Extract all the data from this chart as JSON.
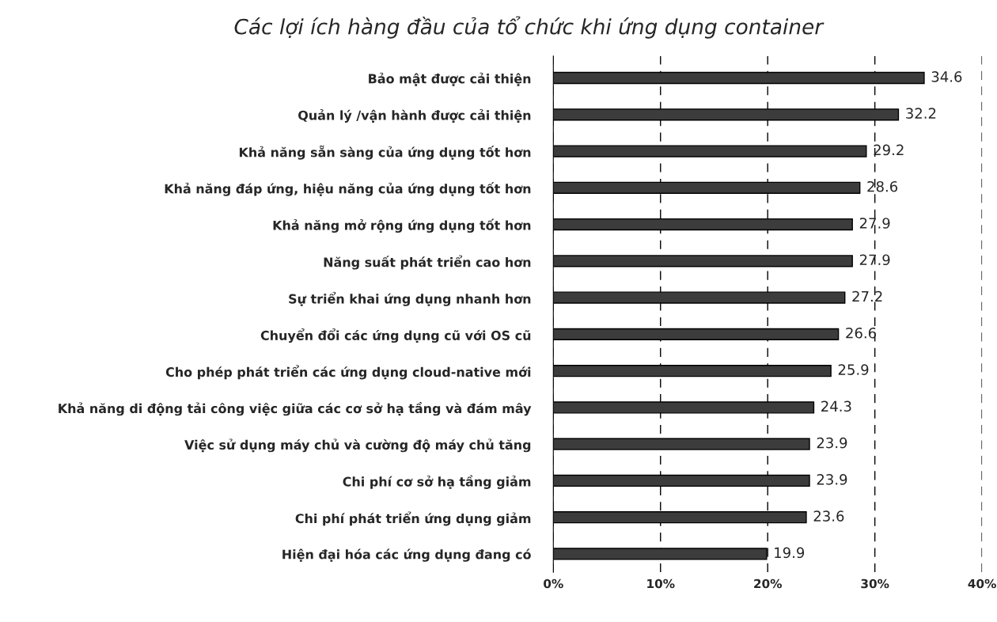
{
  "chart_data": {
    "type": "bar",
    "orientation": "horizontal",
    "title": "Các lợi ích hàng đầu của tổ chức khi ứng dụng container",
    "categories": [
      "Bảo mật được cải thiện",
      "Quản lý /vận hành được cải thiện",
      "Khả năng sẵn sàng của ứng dụng tốt hơn",
      "Khả năng đáp ứng, hiệu năng của ứng dụng tốt hơn",
      "Khả năng mở rộng ứng dụng tốt hơn",
      "Năng suất phát triển cao hơn",
      "Sự triển khai ứng dụng nhanh hơn",
      "Chuyển đổi các ứng dụng cũ với OS cũ",
      "Cho phép phát triển các ứng dụng cloud-native mới",
      "Khả năng di động tải công việc giữa các cơ sở hạ tầng và đám mây",
      "Việc sử dụng máy chủ và cường độ máy chủ tăng",
      "Chi phí cơ sở hạ tầng giảm",
      "Chi phí phát triển ứng dụng giảm",
      "Hiện đại hóa các ứng dụng đang có"
    ],
    "values": [
      34.6,
      32.2,
      29.2,
      28.6,
      27.9,
      27.9,
      27.2,
      26.6,
      25.9,
      24.3,
      23.9,
      23.9,
      23.6,
      19.9
    ],
    "color": "#3c3c3c",
    "xlim": [
      0,
      40
    ],
    "xticks": [
      {
        "value": 0,
        "label": "0%"
      },
      {
        "value": 10,
        "label": "10%"
      },
      {
        "value": 20,
        "label": "20%"
      },
      {
        "value": 30,
        "label": "30%"
      },
      {
        "value": 40,
        "label": "40%"
      }
    ],
    "grid": "x",
    "data_labels": true
  }
}
